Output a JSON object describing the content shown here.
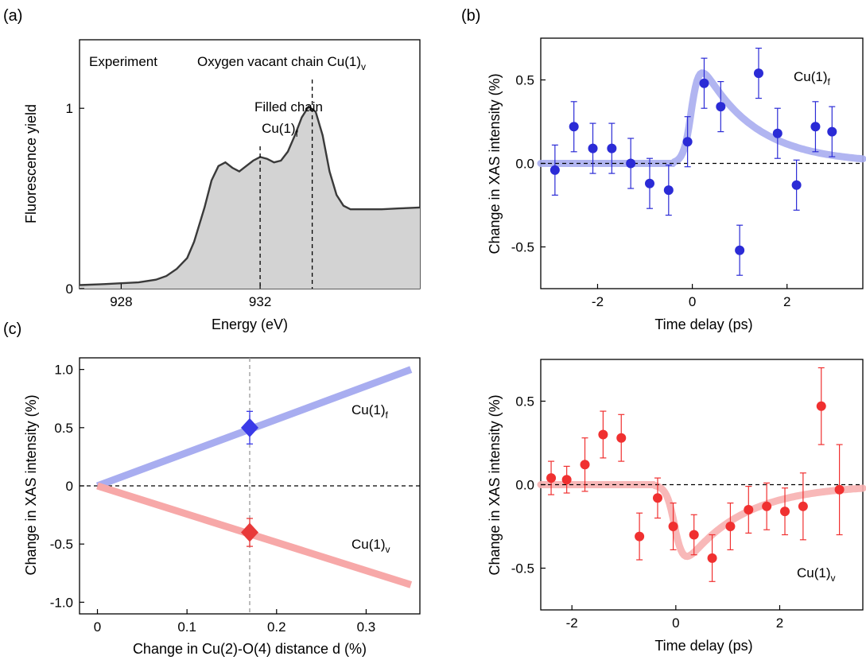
{
  "panels": [
    {
      "id": "a",
      "label": "(a)",
      "chart_data": {
        "type": "area",
        "xlabel": "Energy (eV)",
        "ylabel": "Fluorescence yield",
        "xlim": [
          926.8,
          936.6
        ],
        "ylim": [
          0,
          1.38
        ],
        "xticks": [
          928,
          932
        ],
        "yticks": [
          0,
          1
        ],
        "series": [
          {
            "x": [
              926.8,
              927.5,
              928.0,
              928.5,
              929.0,
              929.3,
              929.6,
              929.9,
              930.1,
              930.4,
              930.6,
              930.8,
              931.0,
              931.2,
              931.4,
              931.6,
              931.8,
              932.0,
              932.2,
              932.4,
              932.6,
              932.8,
              933.0,
              933.2,
              933.4,
              933.6,
              933.8,
              934.0,
              934.2,
              934.4,
              934.6,
              934.8,
              935.0,
              935.5,
              936.0,
              936.6
            ],
            "y": [
              0.02,
              0.025,
              0.03,
              0.035,
              0.05,
              0.07,
              0.11,
              0.17,
              0.26,
              0.45,
              0.6,
              0.68,
              0.7,
              0.67,
              0.65,
              0.68,
              0.71,
              0.73,
              0.72,
              0.7,
              0.71,
              0.76,
              0.85,
              0.95,
              1.01,
              0.98,
              0.85,
              0.65,
              0.52,
              0.46,
              0.44,
              0.44,
              0.44,
              0.44,
              0.445,
              0.45
            ]
          }
        ],
        "vlines": [
          932.0,
          933.5
        ],
        "annotations": [
          "Experiment",
          "Oxygen vacant chain Cu(1)v",
          "Filled chain",
          "Cu(1)f"
        ]
      }
    },
    {
      "id": "b",
      "label": "(b)",
      "chart_data": {
        "type": "scatter",
        "xlabel": "Time delay (ps)",
        "ylabel": "Change in XAS intensity (%)",
        "xlim": [
          -3.2,
          3.6
        ],
        "ylim": [
          -0.75,
          0.75
        ],
        "xticks": [
          -2,
          0,
          2
        ],
        "yticks": [
          "0.5",
          "0.0",
          "-0.5"
        ],
        "series": [
          {
            "name": "Cu(1)f",
            "color": "#2b2bd6",
            "x": [
              -2.9,
              -2.5,
              -2.1,
              -1.7,
              -1.3,
              -0.9,
              -0.5,
              -0.1,
              0.25,
              0.6,
              1.0,
              1.4,
              1.8,
              2.2,
              2.6,
              2.95
            ],
            "y": [
              -0.04,
              0.22,
              0.09,
              0.09,
              0.0,
              -0.12,
              -0.16,
              0.13,
              0.48,
              0.34,
              -0.52,
              0.54,
              0.18,
              -0.13,
              0.22,
              0.19
            ],
            "err": [
              0.15,
              0.15,
              0.15,
              0.15,
              0.15,
              0.15,
              0.15,
              0.15,
              0.15,
              0.15,
              0.15,
              0.15,
              0.15,
              0.15,
              0.15,
              0.15
            ]
          }
        ],
        "fit": {
          "color": "#a8adf0",
          "amplitude": 0.53,
          "t0": 0.0,
          "rise": 0.25,
          "decay": 1.1
        }
      }
    },
    {
      "id": "c",
      "label": "(c)",
      "chart_data": {
        "type": "line",
        "xlabel": "Change in Cu(2)-O(4) distance d (%)",
        "ylabel": "Change in XAS intensity (%)",
        "xlim": [
          -0.02,
          0.36
        ],
        "ylim": [
          -1.1,
          1.1
        ],
        "xticks": [
          "0",
          "0.1",
          "0.2",
          "0.3"
        ],
        "yticks": [
          "1.0",
          "0.5",
          "0",
          "-0.5",
          "-1.0"
        ],
        "series": [
          {
            "name": "Cu(1)f",
            "color": "#a8adf0",
            "x": [
              0,
              0.35
            ],
            "y": [
              0,
              1.0
            ],
            "marker": {
              "x": 0.17,
              "y": 0.5,
              "err": 0.14,
              "color": "#3a3ae8"
            }
          },
          {
            "name": "Cu(1)v",
            "color": "#f7a8a8",
            "x": [
              0,
              0.35
            ],
            "y": [
              0,
              -0.85
            ],
            "marker": {
              "x": 0.17,
              "y": -0.4,
              "err": 0.12,
              "color": "#e83a3a"
            }
          }
        ],
        "vline": 0.17
      }
    },
    {
      "id": "d",
      "chart_data": {
        "type": "scatter",
        "xlabel": "Time delay (ps)",
        "ylabel": "Change in XAS intensity (%)",
        "xlim": [
          -2.6,
          3.6
        ],
        "ylim": [
          -0.75,
          0.75
        ],
        "xticks": [
          -2,
          0,
          2
        ],
        "yticks": [
          "0.5",
          "0.0",
          "-0.5"
        ],
        "series": [
          {
            "name": "Cu(1)v",
            "color": "#f03030",
            "x": [
              -2.4,
              -2.1,
              -1.75,
              -1.4,
              -1.05,
              -0.7,
              -0.35,
              -0.05,
              0.35,
              0.7,
              1.05,
              1.4,
              1.75,
              2.1,
              2.45,
              2.8,
              3.15
            ],
            "y": [
              0.04,
              0.03,
              0.12,
              0.3,
              0.28,
              -0.31,
              -0.08,
              -0.25,
              -0.3,
              -0.44,
              -0.25,
              -0.15,
              -0.13,
              -0.16,
              -0.13,
              0.47,
              -0.03
            ],
            "err": [
              0.1,
              0.08,
              0.16,
              0.14,
              0.14,
              0.14,
              0.12,
              0.14,
              0.12,
              0.14,
              0.14,
              0.14,
              0.14,
              0.14,
              0.2,
              0.23,
              0.27
            ]
          }
        ],
        "fit": {
          "color": "#f7b0b0",
          "amplitude": -0.42,
          "t0": 0.0,
          "rise": 0.25,
          "decay": 1.1
        }
      }
    }
  ],
  "text": {
    "a_experiment": "Experiment",
    "a_vacant": "Oxygen vacant chain Cu(1)",
    "a_vacant_sub": "v",
    "a_filled": "Filled chain",
    "a_filled_cu": "Cu(1)",
    "a_filled_sub": "f",
    "b_series": "Cu(1)",
    "b_series_sub": "f",
    "c_f": "Cu(1)",
    "c_f_sub": "f",
    "c_v": "Cu(1)",
    "c_v_sub": "v",
    "d_series": "Cu(1)",
    "d_series_sub": "v"
  }
}
